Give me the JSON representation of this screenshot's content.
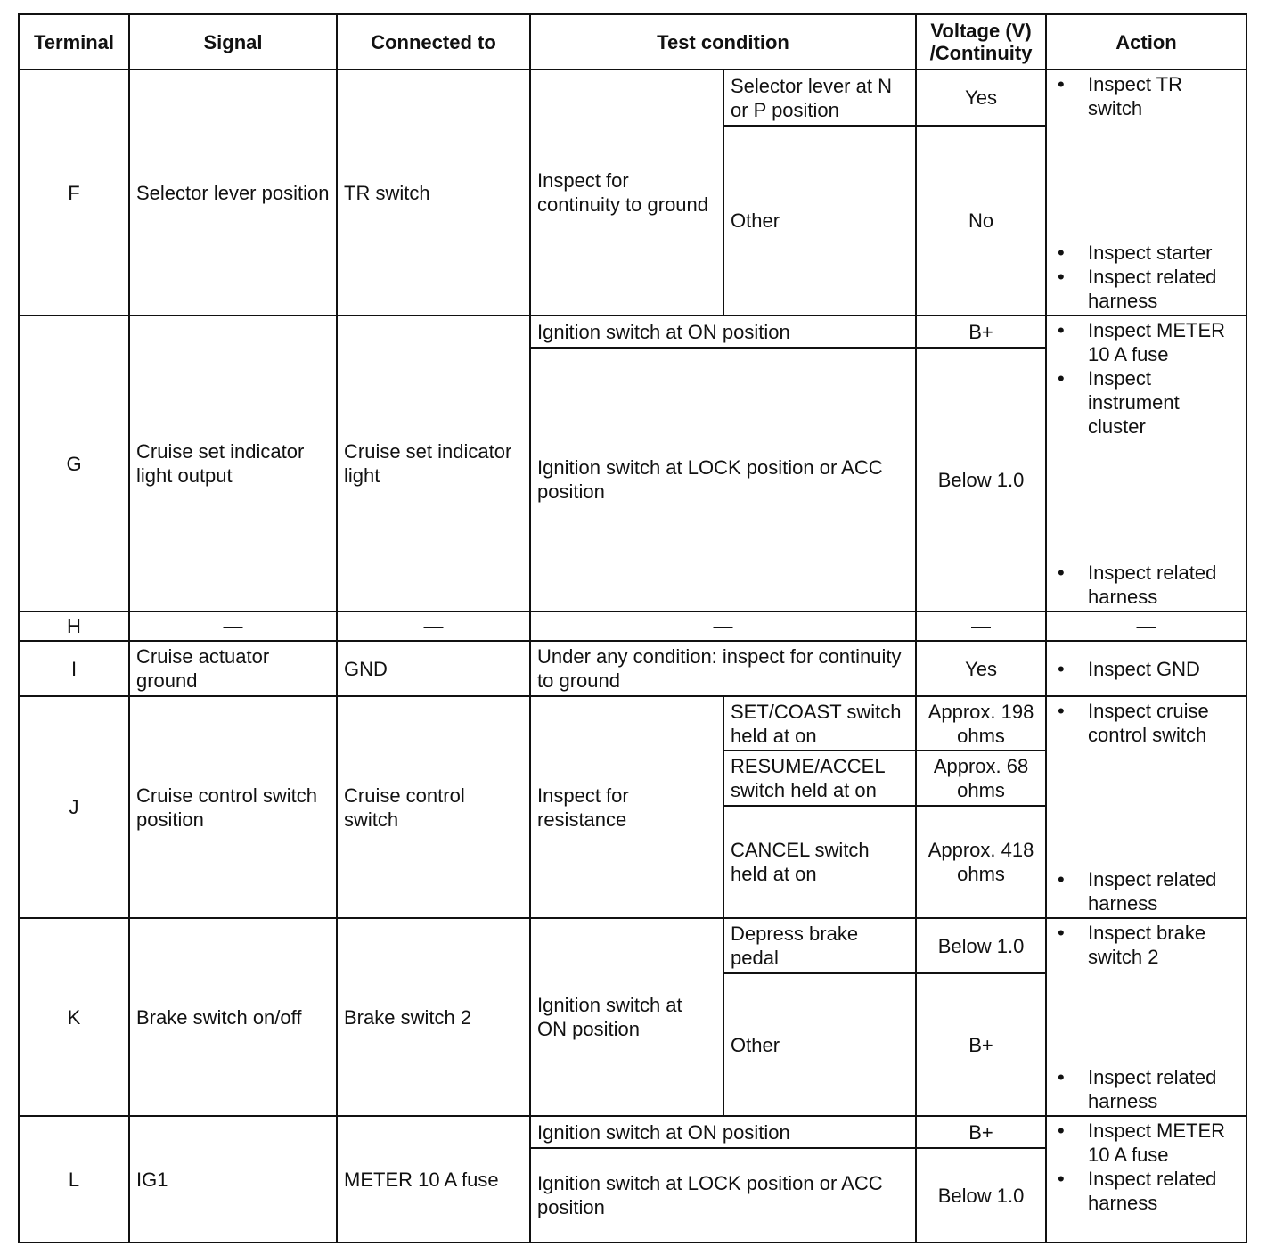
{
  "headers": [
    "Terminal",
    "Signal",
    "Connected to",
    "Test condition",
    "Voltage (V) /Continuity",
    "Action"
  ],
  "rows": {
    "F": {
      "terminal": "F",
      "signal": "Selector lever position",
      "connected": "TR switch",
      "test": "Inspect for continuity to ground",
      "subs": [
        {
          "cond": "Selector lever at N or P position",
          "value": "Yes"
        },
        {
          "cond": "Other",
          "value": "No"
        }
      ],
      "action_top": [
        "Inspect TR switch"
      ],
      "action_bottom": [
        "Inspect starter",
        "Inspect related harness"
      ]
    },
    "G": {
      "terminal": "G",
      "signal": "Cruise set indicator light output",
      "connected": "Cruise set indicator light",
      "subs": [
        {
          "cond": "Ignition switch at ON position",
          "value": "B+"
        },
        {
          "cond": "Ignition switch at LOCK position or ACC position",
          "value": "Below 1.0"
        }
      ],
      "action_top": [
        "Inspect METER 10 A fuse",
        "Inspect instrument cluster"
      ],
      "action_bottom": [
        "Inspect related harness"
      ]
    },
    "H": {
      "terminal": "H",
      "signal": "—",
      "connected": "—",
      "test": "—",
      "value": "—",
      "action": "—"
    },
    "I": {
      "terminal": "I",
      "signal": "Cruise actuator ground",
      "connected": "GND",
      "test": "Under any condition: inspect for continuity to ground",
      "value": "Yes",
      "action_top": [
        "Inspect GND"
      ]
    },
    "J": {
      "terminal": "J",
      "signal": "Cruise control switch position",
      "connected": "Cruise control switch",
      "test": "Inspect for resistance",
      "subs": [
        {
          "cond": "SET/COAST switch held at on",
          "value": "Approx. 198 ohms"
        },
        {
          "cond": "RESUME/ACCEL switch held at on",
          "value": "Approx. 68 ohms"
        },
        {
          "cond": "CANCEL switch held at on",
          "value": "Approx. 418 ohms"
        }
      ],
      "action_top": [
        "Inspect cruise control switch"
      ],
      "action_bottom": [
        "Inspect related harness"
      ]
    },
    "K": {
      "terminal": "K",
      "signal": "Brake switch on/off",
      "connected": "Brake switch 2",
      "test": "Ignition switch at ON position",
      "subs": [
        {
          "cond": "Depress brake pedal",
          "value": "Below 1.0"
        },
        {
          "cond": "Other",
          "value": "B+"
        }
      ],
      "action_top": [
        "Inspect brake switch 2"
      ],
      "action_bottom": [
        "Inspect related harness"
      ]
    },
    "L": {
      "terminal": "L",
      "signal": "IG1",
      "connected": "METER 10 A fuse",
      "subs": [
        {
          "cond": "Ignition switch at ON position",
          "value": "B+"
        },
        {
          "cond": "Ignition switch at LOCK position or ACC position",
          "value": "Below 1.0"
        }
      ],
      "action_top": [
        "Inspect METER 10 A fuse",
        "Inspect related harness"
      ]
    }
  }
}
